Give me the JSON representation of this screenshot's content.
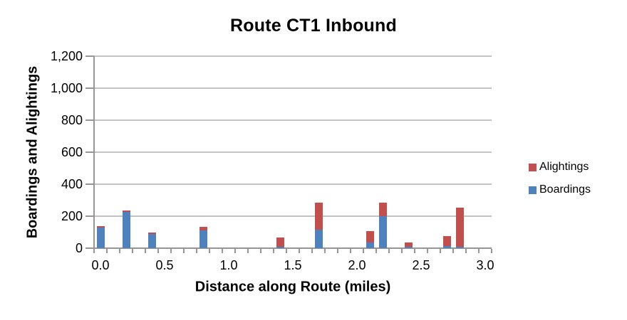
{
  "chart_data": {
    "type": "bar",
    "stacked": true,
    "title": "Route CT1 Inbound",
    "xlabel": "Distance along Route (miles)",
    "ylabel": "Boardings and Alightings",
    "x": [
      0.0,
      0.2,
      0.4,
      0.8,
      1.4,
      1.7,
      2.1,
      2.2,
      2.4,
      2.7,
      2.8
    ],
    "series": [
      {
        "name": "Boardings",
        "color": "#4F81BD",
        "values": [
          130,
          225,
          90,
          110,
          10,
          115,
          35,
          200,
          8,
          12,
          10
        ]
      },
      {
        "name": "Alightings",
        "color": "#C0504D",
        "values": [
          10,
          10,
          7,
          25,
          55,
          170,
          70,
          85,
          28,
          62,
          245
        ]
      }
    ],
    "x_axis": {
      "min": 0.0,
      "max": 3.0,
      "minor_step": 0.1,
      "major_tick_values": [
        0.0,
        0.5,
        1.0,
        1.5,
        2.0,
        2.5,
        3.0
      ],
      "major_tick_labels": [
        "0.0",
        "0.5",
        "1.0",
        "1.5",
        "2.0",
        "2.5",
        "3.0"
      ]
    },
    "y_axis": {
      "min": 0,
      "max": 1200,
      "tick_step": 200,
      "tick_values": [
        0,
        200,
        400,
        600,
        800,
        1000,
        1200
      ],
      "tick_labels": [
        "0",
        "200",
        "400",
        "600",
        "800",
        "1,000",
        "1,200"
      ]
    },
    "grid": "horizontal",
    "grid_color": "#C3C3C3",
    "axis_color": "#969696",
    "text_color": "#000000",
    "background_color": "#FFFFFF",
    "legend_position": "right"
  },
  "legend": {
    "items": [
      {
        "label": "Alightings",
        "color": "#C0504D"
      },
      {
        "label": "Boardings",
        "color": "#4F81BD"
      }
    ]
  }
}
